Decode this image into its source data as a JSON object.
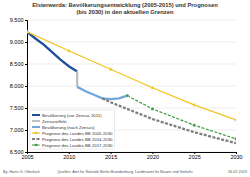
{
  "chart_data": {
    "type": "line",
    "title": [
      "Elsterwerda: Bevölkerungsentwicklung (2005-2015) und Prognosen",
      "(bis 2030) in den aktuellen Grenzen"
    ],
    "xlim": [
      2005,
      2030
    ],
    "xticks": [
      2005,
      2010,
      2015,
      2020,
      2025,
      2030
    ],
    "ylim": [
      6500,
      9500
    ],
    "yticks": [
      {
        "value": 6500,
        "label": "6.500"
      },
      {
        "value": 7000,
        "label": "7.000"
      },
      {
        "value": 7500,
        "label": "7.500"
      },
      {
        "value": 8000,
        "label": "8.000"
      },
      {
        "value": 8500,
        "label": "8.500"
      },
      {
        "value": 9000,
        "label": "9.000"
      },
      {
        "value": 9500,
        "label": "9.500"
      }
    ],
    "grid": true,
    "legend": "lower left",
    "series": [
      {
        "name": "Bevölkerung (vor Zensus 2011)",
        "color": "#1f4e9c",
        "line_style": "solid",
        "x": [
          2005,
          2006,
          2007,
          2008,
          2009,
          2010,
          2011
        ],
        "values": [
          9230,
          9080,
          8940,
          8770,
          8600,
          8450,
          8330
        ]
      },
      {
        "name": "Zensuseffekt",
        "color": "#bfbfbf",
        "line_style": "solid",
        "x": [
          2011,
          2011
        ],
        "values": [
          8330,
          7980
        ]
      },
      {
        "name": "Bevölkerung (nach Zensus)",
        "color": "#6fa8dc",
        "line_style": "solid",
        "x": [
          2011,
          2012,
          2013,
          2014,
          2015,
          2016,
          2017
        ],
        "values": [
          7980,
          7880,
          7800,
          7720,
          7700,
          7720,
          7780
        ]
      },
      {
        "name": "Prognose des Landes BB 2005-2030",
        "color": "#f0c419",
        "line_style": "solid",
        "marker": "circle",
        "x": [
          2005,
          2010,
          2015,
          2020,
          2025,
          2030
        ],
        "values": [
          9230,
          8800,
          8380,
          7960,
          7570,
          7230
        ]
      },
      {
        "name": "Prognose des Landes BB 2014-2030",
        "color": "#7f7f7f",
        "line_style": "dashed",
        "x": [
          2014,
          2015,
          2020,
          2025,
          2030
        ],
        "values": [
          7720,
          7630,
          7250,
          6950,
          6700
        ]
      },
      {
        "name": "Prognose des Landes BB 2017-2030",
        "color": "#3a9a3a",
        "line_style": "dashed",
        "marker": "circle",
        "x": [
          2017,
          2020,
          2025,
          2030
        ],
        "values": [
          7780,
          7480,
          7110,
          6800
        ]
      }
    ],
    "annotations": [
      "By: Hans G. Oberlack",
      "Quellen: Amt für Statistik Berlin-Brandenburg, Landesamt für Bauen und Verkehr",
      "26.07.2019"
    ]
  }
}
